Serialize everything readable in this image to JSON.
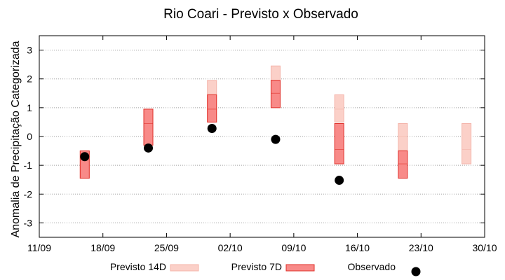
{
  "chart_data": {
    "type": "range-bar-with-points",
    "title": "Rio Coari - Previsto x Observado",
    "xlabel": "",
    "ylabel": "Anomalia de Precipitação Categorizada",
    "x_ticks": [
      "11/09",
      "18/09",
      "25/09",
      "02/10",
      "09/10",
      "16/10",
      "23/10",
      "30/10"
    ],
    "y_ticks": [
      "3",
      "2",
      "1",
      "0",
      "-1",
      "-2",
      "-3"
    ],
    "xlim": [
      "2025-09-11",
      "2025-10-30"
    ],
    "ylim": [
      -3.5,
      3.5
    ],
    "grid": "horizontal dotted",
    "legend_position": "bottom",
    "series": [
      {
        "name": "Previsto 14D",
        "kind": "range",
        "color": "#f4b4aa",
        "fill": "#fbd0c8",
        "points": [
          {
            "x": "2025-09-16",
            "low": -1.45,
            "mid": -0.75,
            "high": -0.5
          },
          {
            "x": "2025-09-23",
            "low": -0.3,
            "mid": 0.45,
            "high": 0.95
          },
          {
            "x": "2025-09-30",
            "low": 0.5,
            "mid": 1.45,
            "high": 1.95
          },
          {
            "x": "2025-10-07",
            "low": 1.0,
            "mid": 1.95,
            "high": 2.45
          },
          {
            "x": "2025-10-14",
            "low": 0.5,
            "mid": 0.95,
            "high": 1.45
          },
          {
            "x": "2025-10-21",
            "low": -0.5,
            "mid": 0.0,
            "high": 0.45
          },
          {
            "x": "2025-10-28",
            "low": -0.95,
            "mid": -0.45,
            "high": 0.45
          }
        ]
      },
      {
        "name": "Previsto 7D",
        "kind": "range",
        "color": "#e0302a",
        "fill": "#f88a88",
        "points": [
          {
            "x": "2025-09-16",
            "low": -1.45,
            "mid": -0.75,
            "high": -0.5
          },
          {
            "x": "2025-09-23",
            "low": -0.3,
            "mid": 0.45,
            "high": 0.95
          },
          {
            "x": "2025-09-30",
            "low": 0.5,
            "mid": 0.95,
            "high": 1.45
          },
          {
            "x": "2025-10-07",
            "low": 1.0,
            "mid": 1.5,
            "high": 1.95
          },
          {
            "x": "2025-10-14",
            "low": -0.95,
            "mid": -0.45,
            "high": 0.45
          },
          {
            "x": "2025-10-21",
            "low": -1.45,
            "mid": -0.95,
            "high": -0.5
          }
        ]
      },
      {
        "name": "Observado",
        "kind": "point",
        "color": "#000000",
        "points": [
          {
            "x": "2025-09-16",
            "y": -0.7
          },
          {
            "x": "2025-09-23",
            "y": -0.4
          },
          {
            "x": "2025-09-30",
            "y": 0.28
          },
          {
            "x": "2025-10-07",
            "y": -0.1
          },
          {
            "x": "2025-10-14",
            "y": -1.52
          }
        ]
      }
    ]
  }
}
